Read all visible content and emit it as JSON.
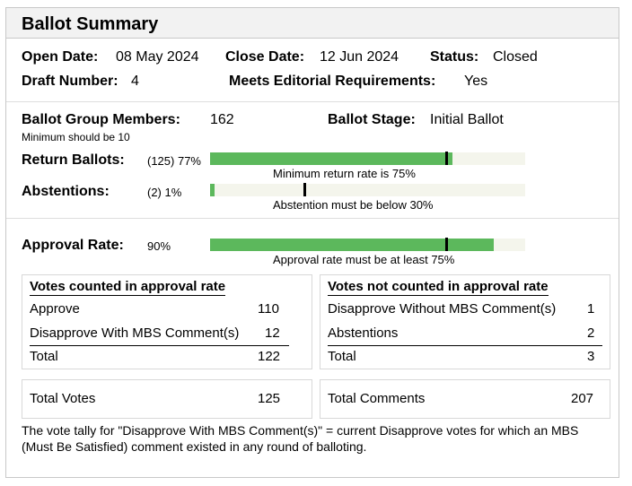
{
  "header": {
    "title": "Ballot Summary"
  },
  "info": {
    "open_date_label": "Open Date:",
    "open_date": "08 May 2024",
    "close_date_label": "Close Date:",
    "close_date": "12 Jun 2024",
    "status_label": "Status:",
    "status": "Closed",
    "draft_label": "Draft Number:",
    "draft": "4",
    "mer_label": "Meets Editorial Requirements:",
    "mer": "Yes"
  },
  "group": {
    "members_label": "Ballot Group Members:",
    "members": "162",
    "members_note": "Minimum should be 10",
    "stage_label": "Ballot Stage:",
    "stage": "Initial Ballot"
  },
  "returns": {
    "label": "Return Ballots:",
    "value": "(125) 77%",
    "fraction": 0.77,
    "threshold": 0.75,
    "note": "Minimum return rate is 75%"
  },
  "abstentions": {
    "label": "Abstentions:",
    "value": "(2) 1%",
    "fraction": 0.01,
    "threshold": 0.3,
    "note": "Abstention must be below 30%"
  },
  "approval": {
    "label": "Approval Rate:",
    "value": "90%",
    "fraction": 0.9,
    "threshold": 0.75,
    "note": "Approval rate must be at least 75%"
  },
  "counted": {
    "title": "Votes counted in approval rate",
    "rows": [
      {
        "label": "Approve",
        "value": "110"
      },
      {
        "label": "Disapprove With MBS Comment(s)",
        "value": "12"
      }
    ],
    "total_label": "Total",
    "total": "122"
  },
  "not_counted": {
    "title": "Votes not counted in approval rate",
    "rows": [
      {
        "label": "Disapprove Without MBS Comment(s)",
        "value": "1"
      },
      {
        "label": "Abstentions",
        "value": "2"
      }
    ],
    "total_label": "Total",
    "total": "3"
  },
  "totals": {
    "votes_label": "Total Votes",
    "votes": "125",
    "comments_label": "Total Comments",
    "comments": "207"
  },
  "footnote": "The vote tally for \"Disapprove With MBS Comment(s)\" = current Disapprove votes for which an MBS (Must Be Satisfied) comment existed in any round of balloting.",
  "colors": {
    "bar_fill": "#5cb85c",
    "bar_track": "#f4f5ec",
    "marker": "#000000"
  }
}
